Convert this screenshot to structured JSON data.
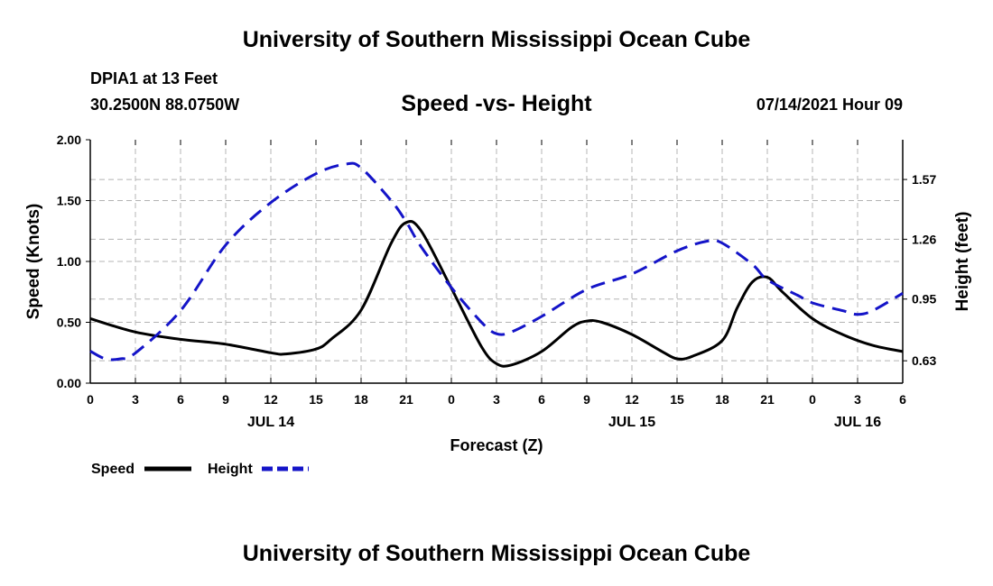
{
  "header": {
    "title": "University of Southern Mississippi Ocean Cube",
    "station": "DPIA1 at 13 Feet",
    "coords": "30.2500N  88.0750W",
    "datetime": "07/14/2021 Hour 09"
  },
  "footer": {
    "title": "University of Southern Mississippi Ocean Cube"
  },
  "colors": {
    "speed": "#000000",
    "height": "#1414c8",
    "grid": "#b4b4b4"
  },
  "chart_data": {
    "type": "line",
    "title": "Speed -vs- Height",
    "xlabel": "Forecast (Z)",
    "ylabel": "Speed (Knots)",
    "ylabel_right": "Height (feet)",
    "x_unit": "hours since 00Z Jul 14",
    "xlim": [
      0,
      54
    ],
    "ylim": [
      0,
      2
    ],
    "ylim_right": [
      0.514,
      1.776
    ],
    "grid": true,
    "x_ticks": [
      {
        "x": 0,
        "label": "0"
      },
      {
        "x": 3,
        "label": "3"
      },
      {
        "x": 6,
        "label": "6"
      },
      {
        "x": 9,
        "label": "9"
      },
      {
        "x": 12,
        "label": "12"
      },
      {
        "x": 15,
        "label": "15"
      },
      {
        "x": 18,
        "label": "18"
      },
      {
        "x": 21,
        "label": "21"
      },
      {
        "x": 24,
        "label": "0"
      },
      {
        "x": 27,
        "label": "3"
      },
      {
        "x": 30,
        "label": "6"
      },
      {
        "x": 33,
        "label": "9"
      },
      {
        "x": 36,
        "label": "12"
      },
      {
        "x": 39,
        "label": "15"
      },
      {
        "x": 42,
        "label": "18"
      },
      {
        "x": 45,
        "label": "21"
      },
      {
        "x": 48,
        "label": "0"
      },
      {
        "x": 51,
        "label": "3"
      },
      {
        "x": 54,
        "label": "6"
      }
    ],
    "date_labels": [
      {
        "x": 12,
        "label": "JUL 14"
      },
      {
        "x": 36,
        "label": "JUL 15"
      },
      {
        "x": 51,
        "label": "JUL 16"
      }
    ],
    "y_ticks_left": [
      {
        "value": 0,
        "label": "0.00"
      },
      {
        "value": 0.5,
        "label": "0.50"
      },
      {
        "value": 1.0,
        "label": "1.00"
      },
      {
        "value": 1.5,
        "label": "1.50"
      },
      {
        "value": 2.0,
        "label": "2.00"
      }
    ],
    "y_ticks_right": [
      {
        "value": 0.63,
        "label": "0.63"
      },
      {
        "value": 0.95,
        "label": "0.95"
      },
      {
        "value": 1.26,
        "label": "1.26"
      },
      {
        "value": 1.57,
        "label": "1.57"
      }
    ],
    "series": [
      {
        "name": "Speed",
        "axis": "left",
        "style": "solid",
        "x": [
          0,
          3,
          6,
          9,
          12,
          13,
          15,
          16,
          18,
          20,
          21,
          22,
          24,
          26,
          27,
          28,
          30,
          32,
          33,
          34,
          36,
          38,
          39,
          40,
          42,
          43,
          44,
          45,
          46,
          48,
          50,
          52,
          54
        ],
        "values": [
          0.53,
          0.42,
          0.36,
          0.32,
          0.25,
          0.24,
          0.28,
          0.36,
          0.6,
          1.15,
          1.32,
          1.25,
          0.78,
          0.3,
          0.16,
          0.15,
          0.26,
          0.46,
          0.51,
          0.5,
          0.4,
          0.26,
          0.2,
          0.22,
          0.35,
          0.62,
          0.83,
          0.87,
          0.75,
          0.53,
          0.4,
          0.31,
          0.26
        ]
      },
      {
        "name": "Height",
        "axis": "right",
        "style": "dashed",
        "x": [
          0,
          1,
          2,
          3,
          6,
          9,
          12,
          15,
          17,
          18,
          20,
          21,
          22,
          24,
          26,
          27,
          28,
          30,
          33,
          36,
          39,
          41,
          42,
          44,
          45,
          47,
          48,
          50,
          51,
          52,
          54
        ],
        "values": [
          0.68,
          0.64,
          0.64,
          0.67,
          0.89,
          1.23,
          1.45,
          1.6,
          1.65,
          1.63,
          1.46,
          1.35,
          1.22,
          1.01,
          0.83,
          0.77,
          0.78,
          0.86,
          1.0,
          1.08,
          1.2,
          1.25,
          1.24,
          1.13,
          1.05,
          0.97,
          0.93,
          0.89,
          0.87,
          0.89,
          0.98
        ]
      }
    ],
    "legend": {
      "placement": "bottom-left",
      "entries": [
        {
          "label": "Speed",
          "series": "Speed"
        },
        {
          "label": "Height",
          "series": "Height"
        }
      ]
    }
  }
}
